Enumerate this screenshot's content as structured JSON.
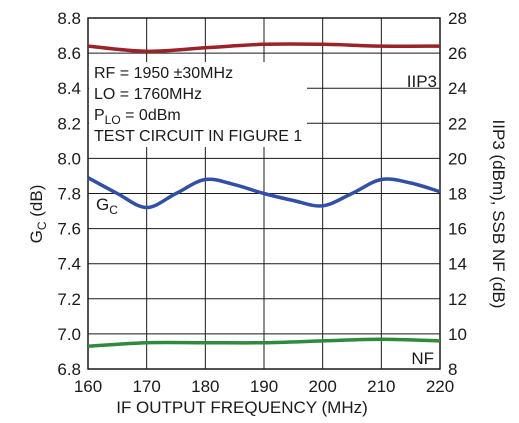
{
  "chart_data": {
    "type": "line",
    "xlabel": "IF OUTPUT FREQUENCY (MHz)",
    "ylabel_left": {
      "main": "G",
      "sub": "C",
      "rest": " (dB)"
    },
    "ylabel_right": "IIP3 (dBm), SSB NF (dB)",
    "xlim": [
      160,
      220
    ],
    "ylim_left": [
      6.8,
      8.8
    ],
    "ylim_right": [
      8,
      28
    ],
    "x_ticks": [
      "160",
      "170",
      "180",
      "190",
      "200",
      "210",
      "220"
    ],
    "y_left_ticks": [
      "6.8",
      "7.0",
      "7.2",
      "7.4",
      "7.6",
      "7.8",
      "8.0",
      "8.2",
      "8.4",
      "8.6",
      "8.8"
    ],
    "y_right_ticks": [
      "8",
      "10",
      "12",
      "14",
      "16",
      "18",
      "20",
      "22",
      "24",
      "26",
      "28"
    ],
    "grid": true,
    "annotations": [
      {
        "text": "RF = 1950 ±30MHz"
      },
      {
        "text": "LO = 1760MHz"
      },
      {
        "main": "P",
        "sub": "LO",
        "rest": " = 0dBm"
      },
      {
        "text": "TEST CIRCUIT IN FIGURE 1"
      }
    ],
    "series": [
      {
        "name": "IIP3",
        "axis": "right",
        "color": "#9b2226",
        "x": [
          160,
          170,
          180,
          190,
          200,
          210,
          220
        ],
        "y": [
          26.4,
          26.1,
          26.3,
          26.5,
          26.5,
          26.4,
          26.4
        ]
      },
      {
        "name": "G",
        "name_sub": "C",
        "axis": "left",
        "color": "#2f4fa8",
        "x": [
          160,
          165,
          170,
          175,
          180,
          185,
          190,
          195,
          200,
          205,
          210,
          215,
          220
        ],
        "y": [
          7.89,
          7.8,
          7.72,
          7.8,
          7.88,
          7.85,
          7.8,
          7.76,
          7.73,
          7.8,
          7.88,
          7.86,
          7.81
        ]
      },
      {
        "name": "NF",
        "axis": "right",
        "color": "#2e8b3e",
        "x": [
          160,
          170,
          180,
          190,
          200,
          210,
          220
        ],
        "y": [
          9.3,
          9.5,
          9.5,
          9.5,
          9.6,
          9.7,
          9.6
        ]
      }
    ]
  }
}
